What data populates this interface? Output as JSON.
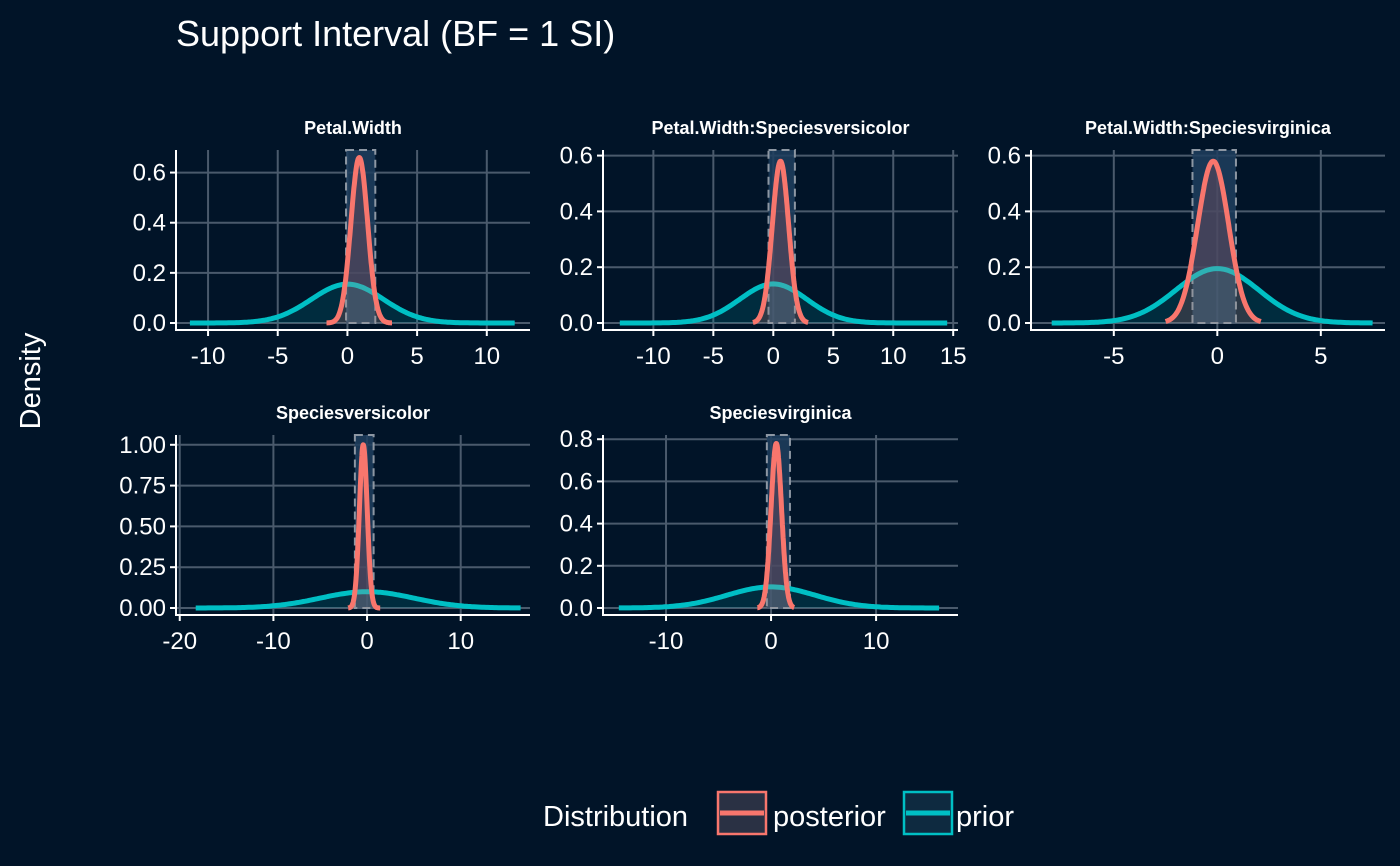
{
  "chart_data": {
    "type": "area",
    "title": "Support Interval (BF = 1 SI)",
    "ylabel": "Density",
    "legend": {
      "title": "Distribution",
      "placement": "bottom",
      "entries": [
        "posterior",
        "prior"
      ]
    },
    "colors": {
      "posterior": "#F8766D",
      "prior": "#00BFC4",
      "si_fill": "#1f3e5e",
      "si_border": "#8d97a3",
      "background": "#011428",
      "grid": "#4a5a6c"
    },
    "panels": [
      {
        "title": "Petal.Width",
        "xlim": [
          -12.3,
          13.1
        ],
        "ylim": [
          0,
          0.69
        ],
        "xticks": [
          -10,
          -5,
          0,
          5,
          10
        ],
        "xtick_labels": [
          "-10",
          "-5",
          "0",
          "5",
          "10"
        ],
        "yticks": [
          0,
          0.2,
          0.4,
          0.6
        ],
        "ytick_labels": [
          "0.0",
          "0.2",
          "0.4",
          "0.6"
        ],
        "support_interval": [
          -0.1,
          2.0
        ],
        "posterior": {
          "mean": 0.85,
          "sd": 0.6,
          "peak": 0.66,
          "range": [
            -1.5,
            3.2
          ]
        },
        "prior": {
          "mean": 0.0,
          "sd": 2.6,
          "peak": 0.155,
          "range": [
            -11.3,
            12.0
          ]
        }
      },
      {
        "title": "Petal.Width:Speciesversicolor",
        "xlim": [
          -14.2,
          15.4
        ],
        "ylim": [
          0,
          0.62
        ],
        "xticks": [
          -10,
          -5,
          0,
          5,
          10,
          15
        ],
        "xtick_labels": [
          "-10",
          "-5",
          "0",
          "5",
          "10",
          "15"
        ],
        "yticks": [
          0,
          0.2,
          0.4,
          0.6
        ],
        "ytick_labels": [
          "0.0",
          "0.2",
          "0.4",
          "0.6"
        ],
        "support_interval": [
          -0.4,
          1.8
        ],
        "posterior": {
          "mean": 0.6,
          "sd": 0.68,
          "peak": 0.58,
          "range": [
            -1.7,
            2.9
          ]
        },
        "prior": {
          "mean": 0.0,
          "sd": 2.8,
          "peak": 0.14,
          "range": [
            -12.8,
            14.5
          ]
        }
      },
      {
        "title": "Petal.Width:Speciesvirginica",
        "xlim": [
          -9.0,
          8.1
        ],
        "ylim": [
          0,
          0.62
        ],
        "xticks": [
          -5,
          0,
          5
        ],
        "xtick_labels": [
          "-5",
          "0",
          "5"
        ],
        "yticks": [
          0,
          0.2,
          0.4,
          0.6
        ],
        "ytick_labels": [
          "0.0",
          "0.2",
          "0.4",
          "0.6"
        ],
        "support_interval": [
          -1.2,
          0.9
        ],
        "posterior": {
          "mean": -0.2,
          "sd": 0.75,
          "peak": 0.58,
          "range": [
            -2.5,
            2.1
          ]
        },
        "prior": {
          "mean": 0.0,
          "sd": 2.0,
          "peak": 0.195,
          "range": [
            -8.0,
            7.5
          ]
        }
      },
      {
        "title": "Speciesversicolor",
        "xlim": [
          -20.4,
          17.4
        ],
        "ylim": [
          0,
          1.06
        ],
        "xticks": [
          -20,
          -10,
          0,
          10
        ],
        "xtick_labels": [
          "-20",
          "-10",
          "0",
          "10"
        ],
        "yticks": [
          0,
          0.25,
          0.5,
          0.75,
          1.0
        ],
        "ytick_labels": [
          "0.00",
          "0.25",
          "0.50",
          "0.75",
          "1.00"
        ],
        "support_interval": [
          -1.3,
          0.7
        ],
        "posterior": {
          "mean": -0.4,
          "sd": 0.42,
          "peak": 1.0,
          "range": [
            -2.0,
            1.4
          ]
        },
        "prior": {
          "mean": 0.0,
          "sd": 5.0,
          "peak": 0.1,
          "range": [
            -18.3,
            16.4
          ]
        }
      },
      {
        "title": "Speciesvirginica",
        "xlim": [
          -16.0,
          17.8
        ],
        "ylim": [
          0,
          0.82
        ],
        "xticks": [
          -10,
          0,
          10
        ],
        "xtick_labels": [
          "-10",
          "0",
          "10"
        ],
        "yticks": [
          0,
          0.2,
          0.4,
          0.6,
          0.8
        ],
        "ytick_labels": [
          "0.0",
          "0.2",
          "0.4",
          "0.6",
          "0.8"
        ],
        "support_interval": [
          -0.4,
          1.8
        ],
        "posterior": {
          "mean": 0.5,
          "sd": 0.5,
          "peak": 0.78,
          "range": [
            -1.3,
            2.2
          ]
        },
        "prior": {
          "mean": 0.0,
          "sd": 4.2,
          "peak": 0.1,
          "range": [
            -14.5,
            16.0
          ]
        }
      }
    ]
  }
}
